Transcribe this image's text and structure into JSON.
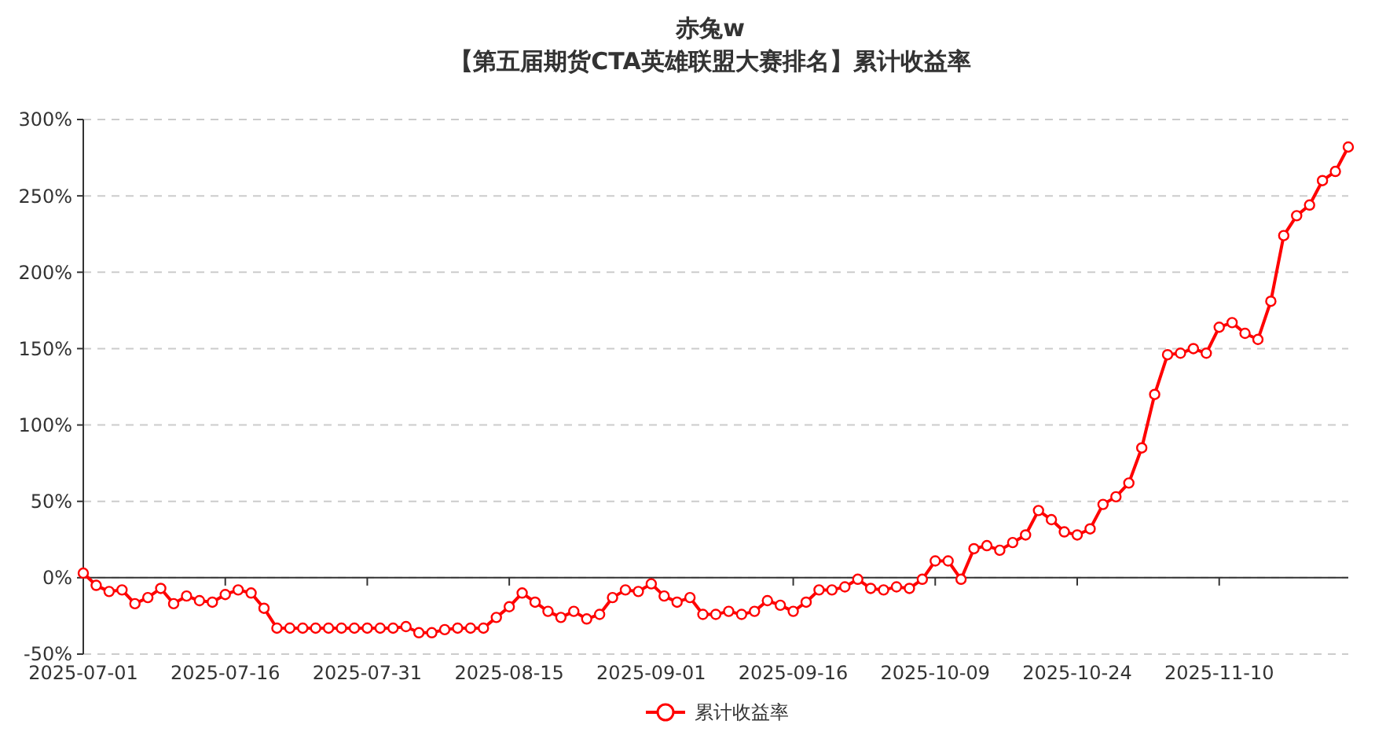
{
  "chart_data": {
    "type": "line",
    "title": "赤兔w",
    "subtitle": "【第五届期货CTA英雄联盟大赛排名】累计收益率",
    "categories": [
      "2025-07-01",
      null,
      null,
      null,
      null,
      null,
      null,
      null,
      null,
      null,
      null,
      "2025-07-16",
      null,
      null,
      null,
      null,
      null,
      null,
      null,
      null,
      null,
      null,
      "2025-07-31",
      null,
      null,
      null,
      null,
      null,
      null,
      null,
      null,
      null,
      null,
      "2025-08-15",
      null,
      null,
      null,
      null,
      null,
      null,
      null,
      null,
      null,
      null,
      "2025-09-01",
      null,
      null,
      null,
      null,
      null,
      null,
      null,
      null,
      null,
      null,
      "2025-09-16",
      null,
      null,
      null,
      null,
      null,
      null,
      null,
      null,
      null,
      null,
      "2025-10-09",
      null,
      null,
      null,
      null,
      null,
      null,
      null,
      null,
      null,
      null,
      "2025-10-24",
      null,
      null,
      null,
      null,
      null,
      null,
      null,
      null,
      null,
      null,
      "2025-11-10",
      null,
      null,
      null,
      null,
      null,
      null,
      null,
      null,
      null,
      null
    ],
    "series": [
      {
        "name": "累计收益率",
        "color": "#ff0000",
        "values": [
          3,
          -5,
          -9,
          -8,
          -17,
          -13,
          -7,
          -17,
          -12,
          -15,
          -16,
          -11,
          -8,
          -10,
          -20,
          -33,
          -33,
          -33,
          -33,
          -33,
          -33,
          -33,
          -33,
          -33,
          -33,
          -32,
          -36,
          -36,
          -34,
          -33,
          -33,
          -33,
          -26,
          -19,
          -10,
          -16,
          -22,
          -26,
          -22,
          -27,
          -24,
          -13,
          -8,
          -9,
          -4,
          -12,
          -16,
          -13,
          -24,
          -24,
          -22,
          -24,
          -22,
          -15,
          -18,
          -22,
          -16,
          -8,
          -8,
          -6,
          -1,
          -7,
          -8,
          -6,
          -7,
          -1,
          11,
          11,
          -1,
          19,
          21,
          18,
          23,
          28,
          44,
          38,
          30,
          28,
          32,
          48,
          53,
          62,
          85,
          120,
          146,
          147,
          150,
          147,
          164,
          167,
          160,
          156,
          181,
          224,
          237,
          244,
          260,
          266,
          282
        ]
      }
    ],
    "ylim": [
      -50,
      300
    ],
    "yticks": [
      {
        "value": -50,
        "label": "-50%"
      },
      {
        "value": 0,
        "label": "0%"
      },
      {
        "value": 50,
        "label": "50%"
      },
      {
        "value": 100,
        "label": "100%"
      },
      {
        "value": 150,
        "label": "150%"
      },
      {
        "value": 200,
        "label": "200%"
      },
      {
        "value": 250,
        "label": "250%"
      },
      {
        "value": 300,
        "label": "300%"
      }
    ],
    "grid": "y",
    "legend": "bottom",
    "marker": "circle"
  }
}
